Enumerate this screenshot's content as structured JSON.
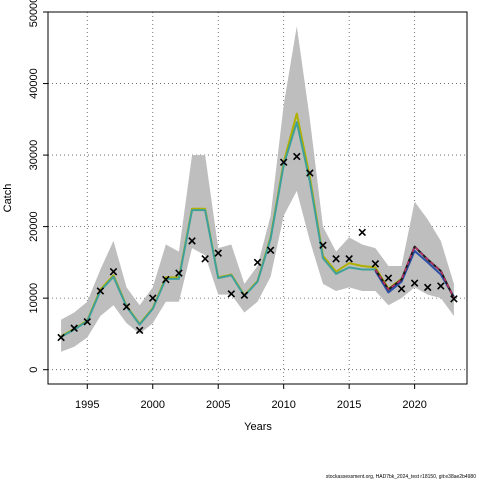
{
  "chart_data": {
    "type": "line",
    "xlabel": "Years",
    "ylabel": "Catch",
    "xlim": [
      1992,
      2024
    ],
    "ylim": [
      -2000,
      50000
    ],
    "x_ticks": [
      1995,
      2000,
      2005,
      2010,
      2015,
      2020
    ],
    "y_ticks": [
      0,
      10000,
      20000,
      30000,
      40000,
      50000
    ],
    "grid": true,
    "x": [
      1993,
      1994,
      1995,
      1996,
      1997,
      1998,
      1999,
      2000,
      2001,
      2002,
      2003,
      2004,
      2005,
      2006,
      2007,
      2008,
      2009,
      2010,
      2011,
      2012,
      2013,
      2014,
      2015,
      2016,
      2017,
      2018,
      2019,
      2020,
      2021,
      2022,
      2023
    ],
    "band_upper": [
      7000,
      8000,
      9500,
      14000,
      18000,
      11500,
      9000,
      11500,
      17500,
      16500,
      30000,
      30000,
      17000,
      17500,
      12000,
      14500,
      21500,
      37000,
      48000,
      35000,
      20000,
      16500,
      18500,
      17500,
      17000,
      14500,
      14500,
      23500,
      21000,
      18000,
      12000
    ],
    "band_lower": [
      2500,
      3200,
      4500,
      7500,
      9000,
      6500,
      5000,
      6500,
      9500,
      9500,
      17000,
      16000,
      10500,
      10500,
      8000,
      9500,
      13000,
      21500,
      25000,
      18000,
      12000,
      11000,
      11500,
      11000,
      11000,
      9000,
      10000,
      11500,
      10500,
      10000,
      7500
    ],
    "series": [
      {
        "color": "#b0b000",
        "values": [
          4700,
          5700,
          6900,
          11200,
          13200,
          8900,
          6400,
          8600,
          12900,
          12900,
          22500,
          22500,
          12900,
          13300,
          10400,
          12400,
          18500,
          29000,
          35800,
          26900,
          15900,
          13700,
          14900,
          14500,
          14300,
          11300,
          12700,
          null,
          null,
          null,
          null
        ]
      },
      {
        "color": "#3fa09a",
        "values": [
          4600,
          5600,
          6800,
          11000,
          13000,
          8800,
          6300,
          8500,
          12700,
          12700,
          22300,
          22300,
          12800,
          13200,
          10300,
          12300,
          18300,
          28600,
          34600,
          26300,
          15600,
          13400,
          14300,
          14000,
          14000,
          11000,
          12500,
          null,
          null,
          null,
          null
        ]
      },
      {
        "color": "#2b4fa8",
        "values": [
          null,
          null,
          null,
          null,
          null,
          null,
          null,
          null,
          null,
          null,
          null,
          null,
          null,
          null,
          null,
          null,
          null,
          null,
          null,
          null,
          null,
          null,
          null,
          null,
          13800,
          10800,
          12300,
          16600,
          15000,
          13300,
          10200
        ]
      },
      {
        "color": "#1a1a1a",
        "values": [
          null,
          null,
          null,
          null,
          null,
          null,
          null,
          null,
          null,
          null,
          null,
          null,
          null,
          null,
          null,
          null,
          null,
          null,
          null,
          null,
          null,
          null,
          null,
          null,
          14000,
          11200,
          12600,
          17200,
          15400,
          13800,
          10000
        ]
      },
      {
        "color": "#c0306a",
        "dashed": true,
        "values": [
          null,
          null,
          null,
          null,
          null,
          null,
          null,
          null,
          null,
          null,
          null,
          null,
          null,
          null,
          null,
          null,
          null,
          null,
          null,
          null,
          null,
          null,
          null,
          null,
          14000,
          11200,
          12600,
          17200,
          15400,
          13800,
          10000
        ]
      }
    ],
    "observed": {
      "x": [
        1993,
        1994,
        1995,
        1996,
        1997,
        1998,
        1999,
        2000,
        2001,
        2002,
        2003,
        2004,
        2005,
        2006,
        2007,
        2008,
        2009,
        2010,
        2011,
        2012,
        2013,
        2014,
        2015,
        2016,
        2017,
        2018,
        2019,
        2020,
        2021,
        2022,
        2023
      ],
      "y": [
        4500,
        5800,
        6700,
        11000,
        13700,
        8800,
        5500,
        10000,
        12600,
        13500,
        18000,
        15500,
        16300,
        10600,
        10400,
        15000,
        16700,
        29000,
        29800,
        27500,
        17400,
        15500,
        15500,
        19200,
        14800,
        12800,
        11300,
        12100,
        11500,
        11700,
        9900
      ]
    }
  },
  "footer": "stockassessment.org, HAD7bk_2024_test r18150, git:e38ae2b4980"
}
